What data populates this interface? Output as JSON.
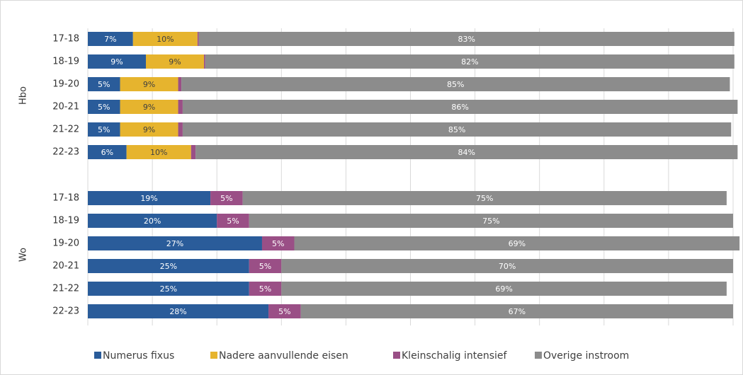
{
  "chart_data": {
    "type": "stacked-bar-horizontal",
    "groups": [
      {
        "name": "Hbo",
        "categories": [
          "17-18",
          "18-19",
          "19-20",
          "20-21",
          "21-22",
          "22-23"
        ]
      },
      {
        "name": "Wo",
        "categories": [
          "17-18",
          "18-19",
          "19-20",
          "20-21",
          "21-22",
          "22-23"
        ]
      }
    ],
    "series": [
      {
        "name": "Numerus fixus",
        "color": "#2a5c9a",
        "values": [
          7,
          9,
          5,
          5,
          5,
          6,
          19,
          20,
          27,
          25,
          25,
          28
        ],
        "value_labels": [
          "7%",
          "9%",
          "5%",
          "5%",
          "5%",
          "6%",
          "19%",
          "20%",
          "27%",
          "25%",
          "25%",
          "28%"
        ]
      },
      {
        "name": "Nadere aanvullende eisen",
        "color": "#e6b42e",
        "values": [
          10,
          9,
          9,
          9,
          9,
          10,
          null,
          null,
          null,
          null,
          null,
          null
        ],
        "value_labels": [
          "10%",
          "9%",
          "9%",
          "9%",
          "9%",
          "10%",
          null,
          null,
          null,
          null,
          null,
          null
        ]
      },
      {
        "name": "Kleinschalig intensief",
        "color": "#9a4f86",
        "values": [
          0.2,
          0.2,
          0.5,
          0.7,
          0.7,
          0.7,
          5,
          5,
          5,
          5,
          5,
          5
        ],
        "value_labels": [
          null,
          null,
          null,
          null,
          null,
          null,
          "5%",
          "5%",
          "5%",
          "5%",
          "5%",
          "5%"
        ]
      },
      {
        "name": "Overige instroom",
        "color": "#8c8c8c",
        "values": [
          83,
          82,
          85,
          86,
          85,
          84,
          75,
          75,
          69,
          70,
          69,
          67
        ],
        "value_labels": [
          "83%",
          "82%",
          "85%",
          "86%",
          "85%",
          "84%",
          "75%",
          "75%",
          "69%",
          "70%",
          "69%",
          "67%"
        ]
      }
    ],
    "xlim": [
      0,
      100
    ],
    "xticks": [
      0,
      10,
      20,
      30,
      40,
      50,
      60,
      70,
      80,
      90,
      100
    ],
    "grid": true,
    "legend": "bottom"
  }
}
